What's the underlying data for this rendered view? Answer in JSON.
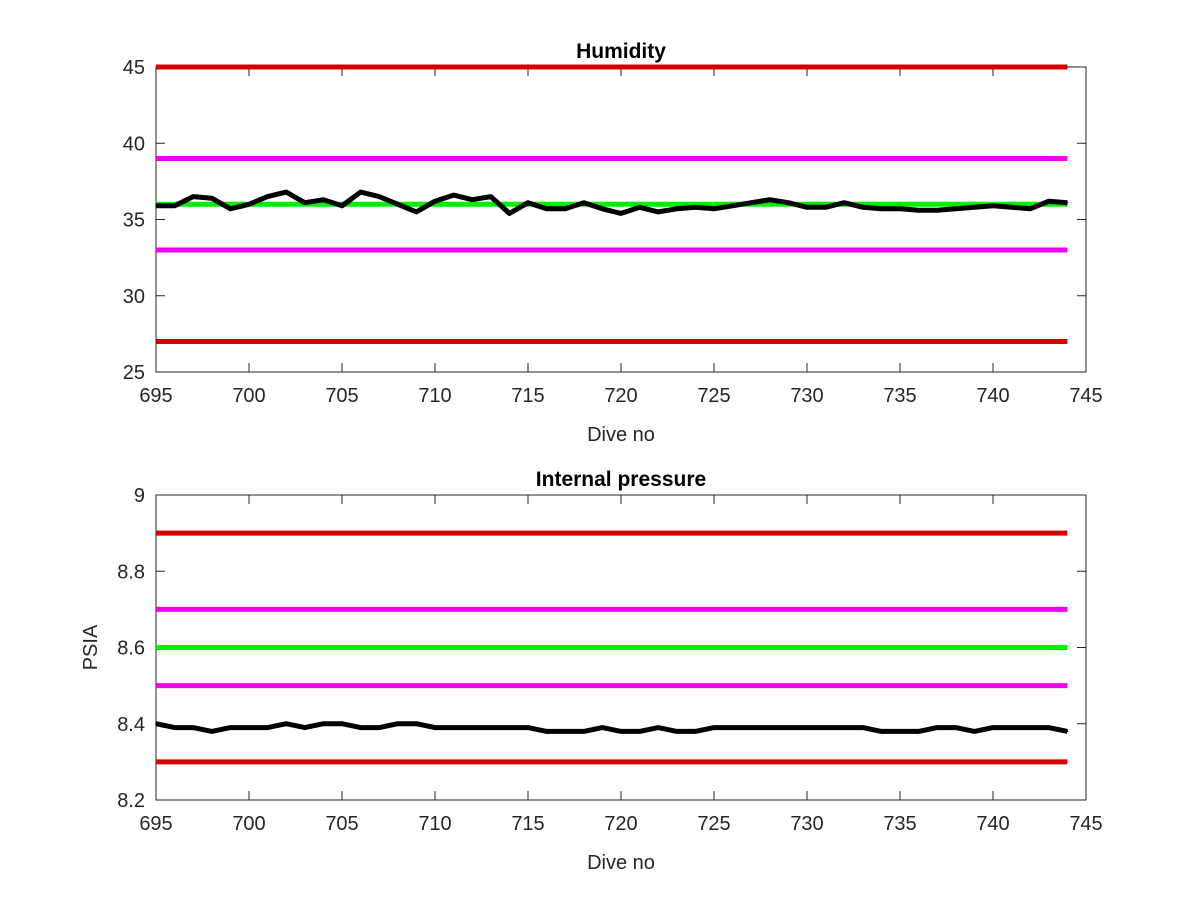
{
  "chart_data": [
    {
      "type": "line",
      "title": "Humidity",
      "xlabel": "Dive no",
      "ylabel": "",
      "xlim": [
        695,
        745
      ],
      "ylim": [
        25,
        45
      ],
      "xticks": [
        695,
        700,
        705,
        710,
        715,
        720,
        725,
        730,
        735,
        740,
        745
      ],
      "yticks": [
        25,
        30,
        35,
        40,
        45
      ],
      "grid": false,
      "reference_lines": [
        {
          "y": 45,
          "color": "#d40000",
          "x": [
            695,
            744
          ]
        },
        {
          "y": 39,
          "color": "#ee00ee",
          "x": [
            695,
            744
          ]
        },
        {
          "y": 36,
          "color": "#00ee00",
          "x": [
            695,
            744
          ]
        },
        {
          "y": 33,
          "color": "#ee00ee",
          "x": [
            695,
            744
          ]
        },
        {
          "y": 27,
          "color": "#d40000",
          "x": [
            695,
            744
          ]
        }
      ],
      "series": [
        {
          "color": "#000000",
          "x": [
            695,
            696,
            697,
            698,
            699,
            700,
            701,
            702,
            703,
            704,
            705,
            706,
            707,
            708,
            709,
            710,
            711,
            712,
            713,
            714,
            715,
            716,
            717,
            718,
            719,
            720,
            721,
            722,
            723,
            724,
            725,
            726,
            727,
            728,
            729,
            730,
            731,
            732,
            733,
            734,
            735,
            736,
            737,
            738,
            739,
            740,
            741,
            742,
            743,
            744
          ],
          "values": [
            35.9,
            35.9,
            36.5,
            36.4,
            35.7,
            36.0,
            36.5,
            36.8,
            36.1,
            36.3,
            35.9,
            36.8,
            36.5,
            36.0,
            35.5,
            36.2,
            36.6,
            36.3,
            36.5,
            35.4,
            36.1,
            35.7,
            35.7,
            36.1,
            35.7,
            35.4,
            35.8,
            35.5,
            35.7,
            35.8,
            35.7,
            35.9,
            36.1,
            36.3,
            36.1,
            35.8,
            35.8,
            36.1,
            35.8,
            35.7,
            35.7,
            35.6,
            35.6,
            35.7,
            35.8,
            35.9,
            35.8,
            35.7,
            36.2,
            36.1
          ]
        }
      ]
    },
    {
      "type": "line",
      "title": "Internal pressure",
      "xlabel": "Dive no",
      "ylabel": "PSIA",
      "xlim": [
        695,
        745
      ],
      "ylim": [
        8.2,
        9.0
      ],
      "xticks": [
        695,
        700,
        705,
        710,
        715,
        720,
        725,
        730,
        735,
        740,
        745
      ],
      "yticks": [
        8.2,
        8.4,
        8.6,
        8.8,
        9
      ],
      "grid": false,
      "reference_lines": [
        {
          "y": 8.9,
          "color": "#d40000",
          "x": [
            695,
            744
          ]
        },
        {
          "y": 8.7,
          "color": "#ee00ee",
          "x": [
            695,
            744
          ]
        },
        {
          "y": 8.6,
          "color": "#00ee00",
          "x": [
            695,
            744
          ]
        },
        {
          "y": 8.5,
          "color": "#ee00ee",
          "x": [
            695,
            744
          ]
        },
        {
          "y": 8.3,
          "color": "#d40000",
          "x": [
            695,
            744
          ]
        }
      ],
      "series": [
        {
          "color": "#000000",
          "x": [
            695,
            696,
            697,
            698,
            699,
            700,
            701,
            702,
            703,
            704,
            705,
            706,
            707,
            708,
            709,
            710,
            711,
            712,
            713,
            714,
            715,
            716,
            717,
            718,
            719,
            720,
            721,
            722,
            723,
            724,
            725,
            726,
            727,
            728,
            729,
            730,
            731,
            732,
            733,
            734,
            735,
            736,
            737,
            738,
            739,
            740,
            741,
            742,
            743,
            744
          ],
          "values": [
            8.4,
            8.39,
            8.39,
            8.38,
            8.39,
            8.39,
            8.39,
            8.4,
            8.39,
            8.4,
            8.4,
            8.39,
            8.39,
            8.4,
            8.4,
            8.39,
            8.39,
            8.39,
            8.39,
            8.39,
            8.39,
            8.38,
            8.38,
            8.38,
            8.39,
            8.38,
            8.38,
            8.39,
            8.38,
            8.38,
            8.39,
            8.39,
            8.39,
            8.39,
            8.39,
            8.39,
            8.39,
            8.39,
            8.39,
            8.38,
            8.38,
            8.38,
            8.39,
            8.39,
            8.38,
            8.39,
            8.39,
            8.39,
            8.39,
            8.38
          ]
        }
      ]
    }
  ]
}
